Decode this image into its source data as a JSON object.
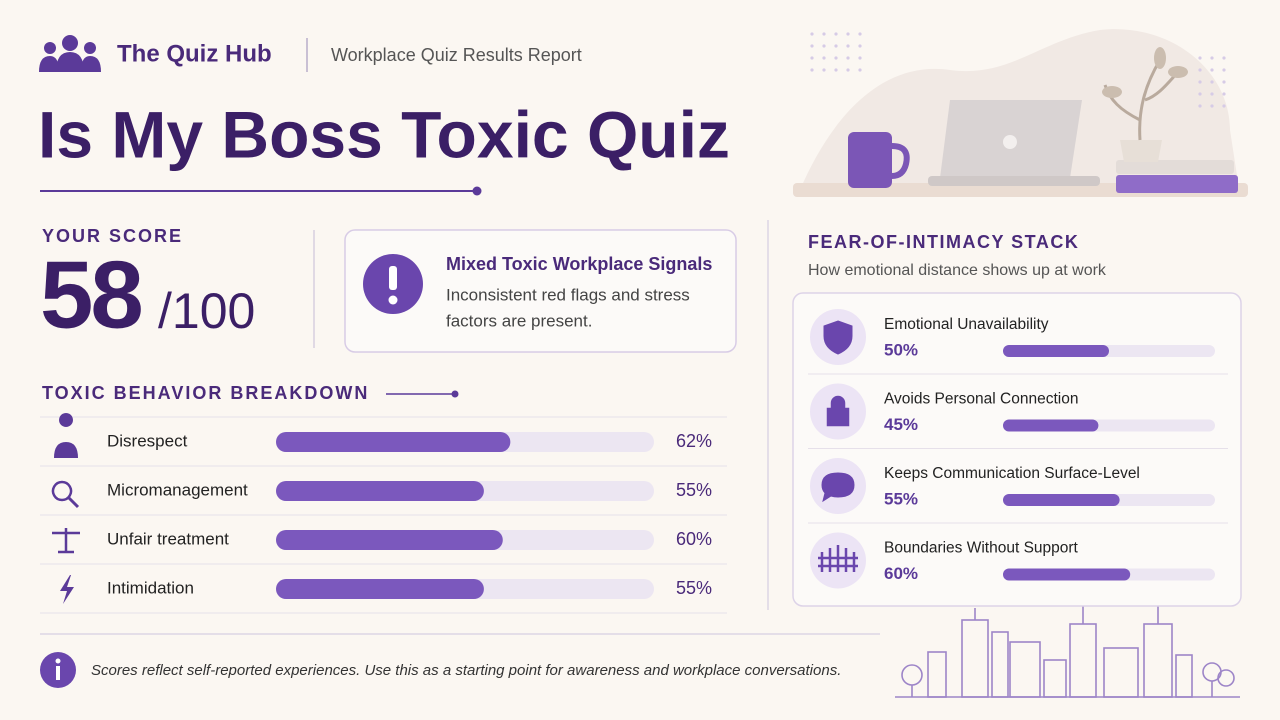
{
  "header": {
    "brand": "The Quiz Hub",
    "report_type": "Workplace Quiz Results Report",
    "title": "Is My Boss Toxic Quiz"
  },
  "score": {
    "heading": "YOUR SCORE",
    "value": 58,
    "total": "/100"
  },
  "verdict": {
    "title": "Mixed Toxic Workplace Signals",
    "description_lines": [
      "Inconsistent red flags and stress",
      "factors are present."
    ]
  },
  "breakdown": {
    "heading": "TOXIC BEHAVIOR BREAKDOWN",
    "range": [
      0,
      100
    ],
    "items": [
      {
        "label": "Disrespect",
        "value": 62,
        "value_label": "62%"
      },
      {
        "label": "Micromanagement",
        "value": 55,
        "value_label": "55%"
      },
      {
        "label": "Unfair treatment",
        "value": 60,
        "value_label": "60%"
      },
      {
        "label": "Intimidation",
        "value": 55,
        "value_label": "55%"
      }
    ]
  },
  "stack": {
    "heading": "FEAR-OF-INTIMACY STACK",
    "subtitle": "How emotional distance shows up at work",
    "range": [
      0,
      100
    ],
    "items": [
      {
        "label": "Emotional Unavailability",
        "value": 50,
        "value_label": "50%"
      },
      {
        "label": "Avoids Personal Connection",
        "value": 45,
        "value_label": "45%"
      },
      {
        "label": "Keeps Communication Surface-Level",
        "value": 55,
        "value_label": "55%"
      },
      {
        "label": "Boundaries Without Support",
        "value": 60,
        "value_label": "60%"
      }
    ]
  },
  "footer": {
    "note": "Scores reflect self-reported experiences. Use this as a starting point for awareness and workplace conversations."
  }
}
